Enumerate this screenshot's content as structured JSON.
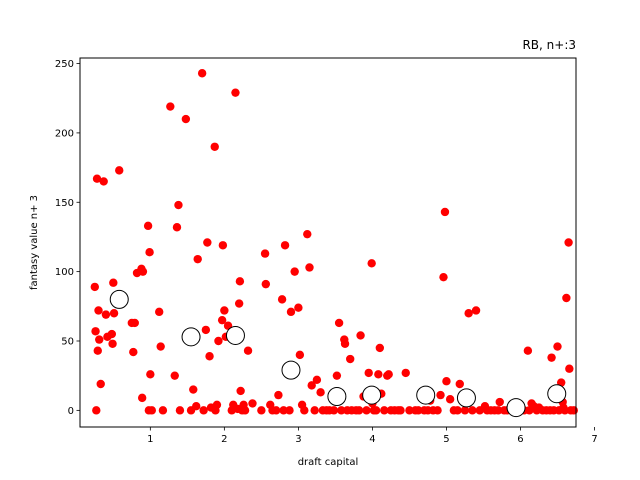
{
  "chart_data": {
    "type": "scatter",
    "title": "RB, n+:3",
    "xlabel": "draft capital",
    "ylabel": "fantasy value n+ 3",
    "xlim": [
      0.05,
      6.75
    ],
    "ylim": [
      -12,
      254
    ],
    "xticks": [
      1,
      2,
      3,
      4,
      5,
      6,
      7
    ],
    "yticks": [
      0,
      50,
      100,
      150,
      200,
      250
    ],
    "grid": false,
    "legend": "none",
    "colors": {
      "points": "#ff0000",
      "means_edge": "#000000",
      "means_fill": "#ffffff"
    },
    "series": [
      {
        "marker": "filled-circle",
        "points": [
          [
            0.25,
            89
          ],
          [
            0.26,
            57
          ],
          [
            0.27,
            0
          ],
          [
            0.28,
            167
          ],
          [
            0.29,
            43
          ],
          [
            0.3,
            72
          ],
          [
            0.31,
            51
          ],
          [
            0.33,
            19
          ],
          [
            0.37,
            165
          ],
          [
            0.4,
            69
          ],
          [
            0.42,
            53
          ],
          [
            0.48,
            55
          ],
          [
            0.49,
            48
          ],
          [
            0.5,
            92
          ],
          [
            0.51,
            70
          ],
          [
            0.58,
            173
          ],
          [
            0.75,
            63
          ],
          [
            0.77,
            42
          ],
          [
            0.79,
            63
          ],
          [
            0.82,
            99
          ],
          [
            0.88,
            102
          ],
          [
            0.89,
            9
          ],
          [
            0.9,
            100
          ],
          [
            0.97,
            133
          ],
          [
            0.98,
            0
          ],
          [
            0.99,
            114
          ],
          [
            1.0,
            26
          ],
          [
            1.02,
            0
          ],
          [
            1.12,
            71
          ],
          [
            1.14,
            46
          ],
          [
            1.17,
            0
          ],
          [
            1.27,
            219
          ],
          [
            1.33,
            25
          ],
          [
            1.36,
            132
          ],
          [
            1.38,
            148
          ],
          [
            1.4,
            0
          ],
          [
            1.48,
            210
          ],
          [
            1.52,
            54
          ],
          [
            1.55,
            0
          ],
          [
            1.58,
            15
          ],
          [
            1.62,
            3
          ],
          [
            1.64,
            109
          ],
          [
            1.7,
            243
          ],
          [
            1.72,
            0
          ],
          [
            1.75,
            58
          ],
          [
            1.77,
            121
          ],
          [
            1.8,
            39
          ],
          [
            1.82,
            2
          ],
          [
            1.87,
            190
          ],
          [
            1.88,
            0
          ],
          [
            1.9,
            4
          ],
          [
            1.92,
            50
          ],
          [
            1.97,
            65
          ],
          [
            1.98,
            119
          ],
          [
            2.0,
            72
          ],
          [
            2.02,
            53
          ],
          [
            2.05,
            61
          ],
          [
            2.1,
            0
          ],
          [
            2.12,
            4
          ],
          [
            2.15,
            229
          ],
          [
            2.18,
            1
          ],
          [
            2.2,
            77
          ],
          [
            2.21,
            93
          ],
          [
            2.22,
            14
          ],
          [
            2.24,
            0
          ],
          [
            2.26,
            4
          ],
          [
            2.28,
            0
          ],
          [
            2.32,
            43
          ],
          [
            2.38,
            5
          ],
          [
            2.5,
            0
          ],
          [
            2.55,
            113
          ],
          [
            2.56,
            91
          ],
          [
            2.62,
            4
          ],
          [
            2.65,
            0
          ],
          [
            2.7,
            0
          ],
          [
            2.73,
            11
          ],
          [
            2.78,
            80
          ],
          [
            2.8,
            0
          ],
          [
            2.82,
            119
          ],
          [
            2.88,
            0
          ],
          [
            2.9,
            71
          ],
          [
            2.95,
            100
          ],
          [
            3.0,
            74
          ],
          [
            3.02,
            40
          ],
          [
            3.05,
            4
          ],
          [
            3.08,
            0
          ],
          [
            3.12,
            127
          ],
          [
            3.15,
            103
          ],
          [
            3.18,
            18
          ],
          [
            3.22,
            0
          ],
          [
            3.25,
            22
          ],
          [
            3.3,
            13
          ],
          [
            3.33,
            0
          ],
          [
            3.38,
            0
          ],
          [
            3.42,
            0
          ],
          [
            3.48,
            0
          ],
          [
            3.52,
            25
          ],
          [
            3.55,
            63
          ],
          [
            3.58,
            0
          ],
          [
            3.62,
            51
          ],
          [
            3.63,
            48
          ],
          [
            3.66,
            0
          ],
          [
            3.7,
            37
          ],
          [
            3.72,
            0
          ],
          [
            3.78,
            0
          ],
          [
            3.82,
            0
          ],
          [
            3.84,
            54
          ],
          [
            3.88,
            10
          ],
          [
            3.92,
            0
          ],
          [
            3.95,
            27
          ],
          [
            3.99,
            106
          ],
          [
            4.0,
            5
          ],
          [
            4.02,
            0
          ],
          [
            4.05,
            0
          ],
          [
            4.08,
            26
          ],
          [
            4.1,
            45
          ],
          [
            4.12,
            12
          ],
          [
            4.16,
            0
          ],
          [
            4.2,
            25
          ],
          [
            4.22,
            26
          ],
          [
            4.25,
            0
          ],
          [
            4.3,
            0
          ],
          [
            4.35,
            0
          ],
          [
            4.38,
            0
          ],
          [
            4.45,
            27
          ],
          [
            4.5,
            0
          ],
          [
            4.58,
            0
          ],
          [
            4.62,
            0
          ],
          [
            4.7,
            0
          ],
          [
            4.74,
            10
          ],
          [
            4.75,
            0
          ],
          [
            4.78,
            7
          ],
          [
            4.82,
            0
          ],
          [
            4.88,
            0
          ],
          [
            4.92,
            11
          ],
          [
            4.96,
            96
          ],
          [
            4.98,
            143
          ],
          [
            5.0,
            21
          ],
          [
            5.05,
            8
          ],
          [
            5.1,
            0
          ],
          [
            5.15,
            0
          ],
          [
            5.18,
            19
          ],
          [
            5.25,
            0
          ],
          [
            5.3,
            70
          ],
          [
            5.35,
            0
          ],
          [
            5.4,
            72
          ],
          [
            5.45,
            0
          ],
          [
            5.52,
            3
          ],
          [
            5.55,
            0
          ],
          [
            5.6,
            0
          ],
          [
            5.65,
            0
          ],
          [
            5.7,
            0
          ],
          [
            5.72,
            6
          ],
          [
            5.78,
            0
          ],
          [
            5.82,
            0
          ],
          [
            5.88,
            0
          ],
          [
            5.95,
            0
          ],
          [
            6.0,
            0
          ],
          [
            6.05,
            0
          ],
          [
            6.1,
            43
          ],
          [
            6.12,
            0
          ],
          [
            6.15,
            5
          ],
          [
            6.18,
            3
          ],
          [
            6.22,
            0
          ],
          [
            6.25,
            2
          ],
          [
            6.3,
            0
          ],
          [
            6.35,
            0
          ],
          [
            6.4,
            0
          ],
          [
            6.42,
            38
          ],
          [
            6.45,
            0
          ],
          [
            6.5,
            46
          ],
          [
            6.52,
            0
          ],
          [
            6.55,
            20
          ],
          [
            6.57,
            6
          ],
          [
            6.58,
            2
          ],
          [
            6.6,
            0
          ],
          [
            6.62,
            81
          ],
          [
            6.65,
            121
          ],
          [
            6.66,
            30
          ],
          [
            6.68,
            0
          ],
          [
            6.72,
            0
          ]
        ]
      },
      {
        "marker": "hollow-circle-large",
        "points": [
          [
            0.58,
            80
          ],
          [
            1.55,
            53
          ],
          [
            2.15,
            54
          ],
          [
            2.9,
            29
          ],
          [
            3.52,
            10
          ],
          [
            3.99,
            11
          ],
          [
            4.72,
            11
          ],
          [
            5.27,
            9
          ],
          [
            5.94,
            2
          ],
          [
            6.49,
            12
          ]
        ]
      }
    ]
  }
}
